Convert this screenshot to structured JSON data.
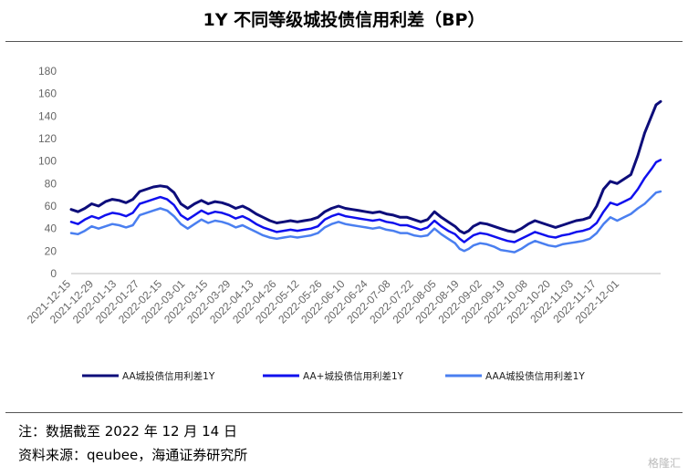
{
  "title": "1Y 不同等级城投债信用利差（BP）",
  "note_1": "注：数据截至 2022 年 12 月 14 日",
  "note_2": "资料来源：qeubee，海通证券研究所",
  "watermark": "格隆汇",
  "chart_data": {
    "type": "line",
    "ylim": [
      0,
      180
    ],
    "yticks": [
      0,
      20,
      40,
      60,
      80,
      100,
      120,
      140,
      160,
      180
    ],
    "x_tick_labels": [
      "2021-12-15",
      "2021-12-29",
      "2022-01-13",
      "2022-01-27",
      "2022-02-15",
      "2022-03-01",
      "2022-03-15",
      "2022-03-29",
      "2022-04-13",
      "2022-04-26",
      "2022-05-12",
      "2022-05-26",
      "2022-06-10",
      "2022-06-24",
      "2022-07-08",
      "2022-07-22",
      "2022-08-05",
      "2022-08-19",
      "2022-09-02",
      "2022-09-19",
      "2022-10-08",
      "2022-10-20",
      "2022-11-03",
      "2022-11-17",
      "2022-12-01"
    ],
    "x_positions": [
      0,
      10,
      20,
      30,
      40,
      50,
      60,
      70,
      80,
      90,
      100,
      110,
      120,
      130,
      140,
      150,
      160,
      170,
      180,
      190,
      200,
      210,
      220,
      230,
      240
    ],
    "x_range": [
      0,
      258
    ],
    "legend_position": "bottom",
    "grid": false,
    "series": [
      {
        "name": "AA城投债信用利差1Y",
        "color": "#0d0d7a",
        "width": 3,
        "points": [
          [
            0,
            57
          ],
          [
            3,
            55
          ],
          [
            6,
            58
          ],
          [
            9,
            62
          ],
          [
            12,
            60
          ],
          [
            15,
            64
          ],
          [
            18,
            66
          ],
          [
            21,
            65
          ],
          [
            24,
            63
          ],
          [
            27,
            66
          ],
          [
            30,
            73
          ],
          [
            33,
            75
          ],
          [
            36,
            77
          ],
          [
            39,
            78
          ],
          [
            42,
            77
          ],
          [
            45,
            72
          ],
          [
            48,
            62
          ],
          [
            51,
            58
          ],
          [
            54,
            62
          ],
          [
            57,
            65
          ],
          [
            60,
            62
          ],
          [
            63,
            64
          ],
          [
            66,
            63
          ],
          [
            69,
            61
          ],
          [
            72,
            58
          ],
          [
            75,
            60
          ],
          [
            78,
            57
          ],
          [
            81,
            53
          ],
          [
            84,
            50
          ],
          [
            87,
            47
          ],
          [
            90,
            45
          ],
          [
            93,
            46
          ],
          [
            96,
            47
          ],
          [
            99,
            46
          ],
          [
            102,
            47
          ],
          [
            105,
            48
          ],
          [
            108,
            50
          ],
          [
            111,
            55
          ],
          [
            114,
            58
          ],
          [
            117,
            60
          ],
          [
            120,
            58
          ],
          [
            123,
            57
          ],
          [
            126,
            56
          ],
          [
            129,
            55
          ],
          [
            132,
            54
          ],
          [
            135,
            55
          ],
          [
            138,
            53
          ],
          [
            141,
            52
          ],
          [
            144,
            50
          ],
          [
            147,
            50
          ],
          [
            150,
            48
          ],
          [
            153,
            46
          ],
          [
            156,
            48
          ],
          [
            159,
            55
          ],
          [
            162,
            50
          ],
          [
            165,
            46
          ],
          [
            168,
            42
          ],
          [
            170,
            38
          ],
          [
            172,
            36
          ],
          [
            174,
            38
          ],
          [
            176,
            42
          ],
          [
            179,
            45
          ],
          [
            182,
            44
          ],
          [
            185,
            42
          ],
          [
            188,
            40
          ],
          [
            191,
            38
          ],
          [
            194,
            37
          ],
          [
            197,
            40
          ],
          [
            200,
            44
          ],
          [
            203,
            47
          ],
          [
            206,
            45
          ],
          [
            209,
            43
          ],
          [
            212,
            41
          ],
          [
            215,
            43
          ],
          [
            218,
            45
          ],
          [
            221,
            47
          ],
          [
            224,
            48
          ],
          [
            227,
            50
          ],
          [
            230,
            60
          ],
          [
            233,
            75
          ],
          [
            236,
            82
          ],
          [
            239,
            80
          ],
          [
            242,
            84
          ],
          [
            245,
            88
          ],
          [
            248,
            105
          ],
          [
            251,
            125
          ],
          [
            254,
            140
          ],
          [
            256,
            150
          ],
          [
            258,
            153
          ]
        ]
      },
      {
        "name": "AA+城投债信用利差1Y",
        "color": "#1010ee",
        "width": 2.5,
        "points": [
          [
            0,
            46
          ],
          [
            3,
            44
          ],
          [
            6,
            48
          ],
          [
            9,
            51
          ],
          [
            12,
            49
          ],
          [
            15,
            52
          ],
          [
            18,
            54
          ],
          [
            21,
            53
          ],
          [
            24,
            51
          ],
          [
            27,
            54
          ],
          [
            30,
            62
          ],
          [
            33,
            64
          ],
          [
            36,
            66
          ],
          [
            39,
            68
          ],
          [
            42,
            66
          ],
          [
            45,
            61
          ],
          [
            48,
            52
          ],
          [
            51,
            48
          ],
          [
            54,
            52
          ],
          [
            57,
            56
          ],
          [
            60,
            53
          ],
          [
            63,
            55
          ],
          [
            66,
            54
          ],
          [
            69,
            52
          ],
          [
            72,
            49
          ],
          [
            75,
            51
          ],
          [
            78,
            48
          ],
          [
            81,
            44
          ],
          [
            84,
            41
          ],
          [
            87,
            39
          ],
          [
            90,
            37
          ],
          [
            93,
            38
          ],
          [
            96,
            39
          ],
          [
            99,
            38
          ],
          [
            102,
            39
          ],
          [
            105,
            40
          ],
          [
            108,
            42
          ],
          [
            111,
            48
          ],
          [
            114,
            51
          ],
          [
            117,
            53
          ],
          [
            120,
            51
          ],
          [
            123,
            50
          ],
          [
            126,
            49
          ],
          [
            129,
            48
          ],
          [
            132,
            47
          ],
          [
            135,
            48
          ],
          [
            138,
            46
          ],
          [
            141,
            45
          ],
          [
            144,
            43
          ],
          [
            147,
            43
          ],
          [
            150,
            41
          ],
          [
            153,
            39
          ],
          [
            156,
            41
          ],
          [
            159,
            47
          ],
          [
            162,
            42
          ],
          [
            165,
            38
          ],
          [
            168,
            35
          ],
          [
            170,
            31
          ],
          [
            172,
            28
          ],
          [
            174,
            31
          ],
          [
            176,
            34
          ],
          [
            179,
            36
          ],
          [
            182,
            35
          ],
          [
            185,
            33
          ],
          [
            188,
            31
          ],
          [
            191,
            29
          ],
          [
            194,
            28
          ],
          [
            197,
            31
          ],
          [
            200,
            34
          ],
          [
            203,
            37
          ],
          [
            206,
            35
          ],
          [
            209,
            33
          ],
          [
            212,
            32
          ],
          [
            215,
            34
          ],
          [
            218,
            35
          ],
          [
            221,
            37
          ],
          [
            224,
            38
          ],
          [
            227,
            40
          ],
          [
            230,
            45
          ],
          [
            233,
            55
          ],
          [
            236,
            63
          ],
          [
            239,
            61
          ],
          [
            242,
            64
          ],
          [
            245,
            67
          ],
          [
            248,
            75
          ],
          [
            251,
            85
          ],
          [
            254,
            93
          ],
          [
            256,
            99
          ],
          [
            258,
            101
          ]
        ]
      },
      {
        "name": "AAA城投债信用利差1Y",
        "color": "#4a7ff0",
        "width": 2.5,
        "points": [
          [
            0,
            36
          ],
          [
            3,
            35
          ],
          [
            6,
            38
          ],
          [
            9,
            42
          ],
          [
            12,
            40
          ],
          [
            15,
            42
          ],
          [
            18,
            44
          ],
          [
            21,
            43
          ],
          [
            24,
            41
          ],
          [
            27,
            43
          ],
          [
            30,
            52
          ],
          [
            33,
            54
          ],
          [
            36,
            56
          ],
          [
            39,
            58
          ],
          [
            42,
            56
          ],
          [
            45,
            51
          ],
          [
            48,
            44
          ],
          [
            51,
            40
          ],
          [
            54,
            44
          ],
          [
            57,
            48
          ],
          [
            60,
            45
          ],
          [
            63,
            47
          ],
          [
            66,
            46
          ],
          [
            69,
            44
          ],
          [
            72,
            41
          ],
          [
            75,
            43
          ],
          [
            78,
            40
          ],
          [
            81,
            37
          ],
          [
            84,
            34
          ],
          [
            87,
            32
          ],
          [
            90,
            31
          ],
          [
            93,
            32
          ],
          [
            96,
            33
          ],
          [
            99,
            32
          ],
          [
            102,
            33
          ],
          [
            105,
            34
          ],
          [
            108,
            36
          ],
          [
            111,
            41
          ],
          [
            114,
            44
          ],
          [
            117,
            46
          ],
          [
            120,
            44
          ],
          [
            123,
            43
          ],
          [
            126,
            42
          ],
          [
            129,
            41
          ],
          [
            132,
            40
          ],
          [
            135,
            41
          ],
          [
            138,
            39
          ],
          [
            141,
            38
          ],
          [
            144,
            36
          ],
          [
            147,
            36
          ],
          [
            150,
            34
          ],
          [
            153,
            33
          ],
          [
            156,
            34
          ],
          [
            159,
            40
          ],
          [
            162,
            35
          ],
          [
            165,
            31
          ],
          [
            168,
            27
          ],
          [
            170,
            22
          ],
          [
            172,
            20
          ],
          [
            174,
            22
          ],
          [
            176,
            25
          ],
          [
            179,
            27
          ],
          [
            182,
            26
          ],
          [
            185,
            24
          ],
          [
            188,
            21
          ],
          [
            191,
            20
          ],
          [
            194,
            19
          ],
          [
            197,
            22
          ],
          [
            200,
            26
          ],
          [
            203,
            29
          ],
          [
            206,
            27
          ],
          [
            209,
            25
          ],
          [
            212,
            24
          ],
          [
            215,
            26
          ],
          [
            218,
            27
          ],
          [
            221,
            28
          ],
          [
            224,
            29
          ],
          [
            227,
            31
          ],
          [
            230,
            36
          ],
          [
            233,
            44
          ],
          [
            236,
            50
          ],
          [
            239,
            47
          ],
          [
            242,
            50
          ],
          [
            245,
            53
          ],
          [
            248,
            58
          ],
          [
            251,
            62
          ],
          [
            254,
            68
          ],
          [
            256,
            72
          ],
          [
            258,
            73
          ]
        ]
      }
    ]
  }
}
